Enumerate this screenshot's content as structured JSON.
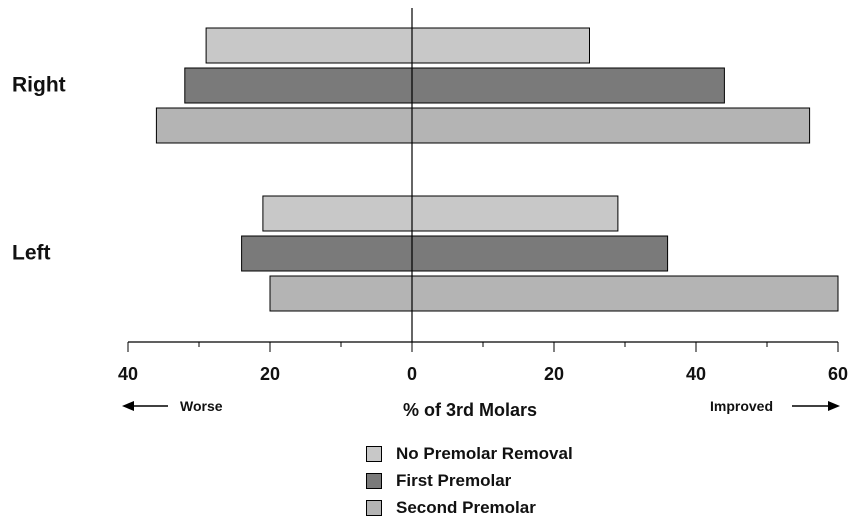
{
  "chart_data": {
    "type": "bar",
    "orientation": "horizontal-diverging",
    "groups": [
      "Right",
      "Left"
    ],
    "series": [
      {
        "name": "No Premolar Removal",
        "color": "#c8c8c8",
        "worse": [
          29,
          21
        ],
        "improved": [
          25,
          29
        ]
      },
      {
        "name": "First Premolar",
        "color": "#7a7a7a",
        "worse": [
          32,
          24
        ],
        "improved": [
          44,
          36
        ]
      },
      {
        "name": "Second Premolar",
        "color": "#b4b4b4",
        "worse": [
          36,
          20
        ],
        "improved": [
          56,
          60
        ]
      }
    ],
    "xlabel": "% of 3rd Molars",
    "xlim": [
      -40,
      60
    ],
    "ticks": [
      -40,
      -20,
      0,
      20,
      40,
      60
    ],
    "tick_labels": [
      "40",
      "20",
      "0",
      "20",
      "40",
      "60"
    ],
    "left_annotation": "Worse",
    "right_annotation": "Improved",
    "legend_position": "bottom"
  }
}
